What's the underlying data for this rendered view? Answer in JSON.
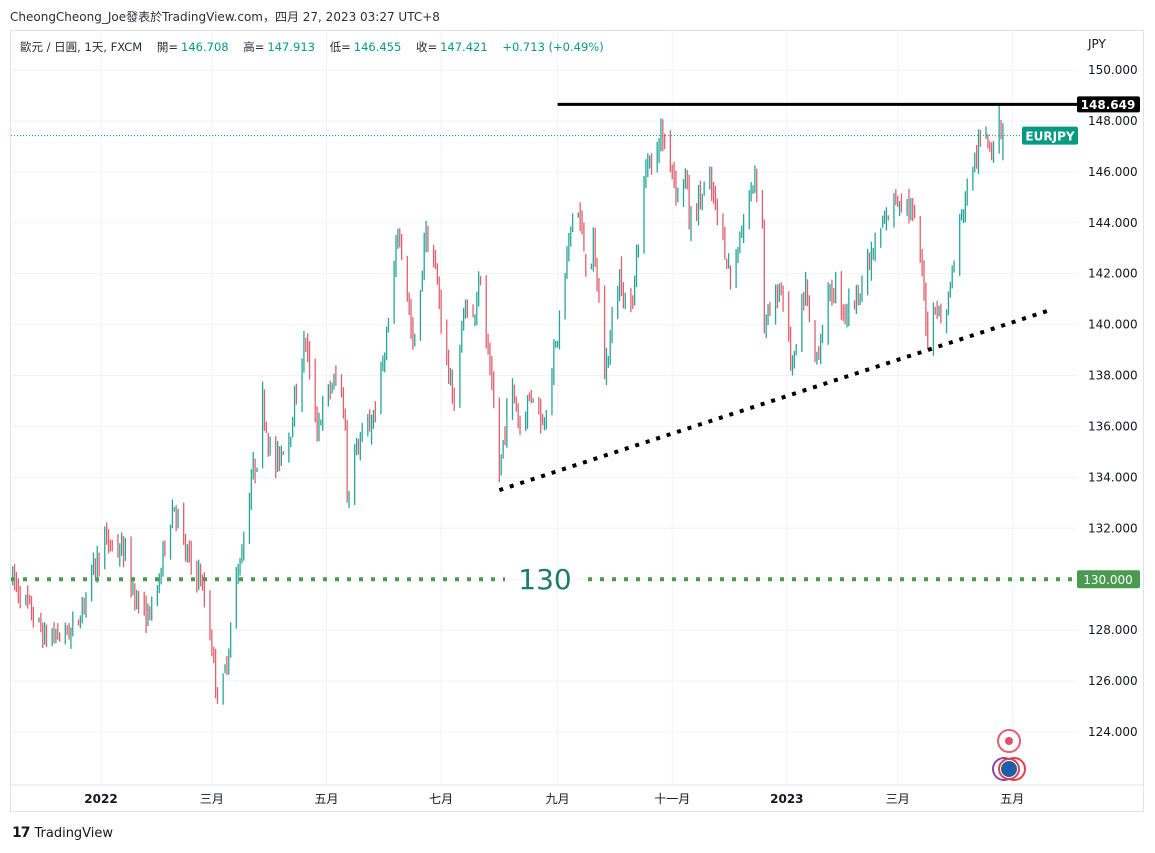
{
  "publish_line": "CheongCheong_Joe發表於TradingView.com，四月 27, 2023 03:27 UTC+8",
  "legend": {
    "symbol": "歐元 / 日圓, 1天, FXCM",
    "open_label": "開=",
    "open": "146.708",
    "high_label": "高=",
    "high": "147.913",
    "low_label": "低=",
    "low": "146.455",
    "close_label": "收=",
    "close": "147.421",
    "change": "+0.713 (+0.49%)"
  },
  "footer": {
    "logo_text": "TradingView"
  },
  "colors": {
    "up": "#26a69a",
    "down": "#e0606e",
    "accent": "#089981",
    "level130": "#4c9a52",
    "label130": "#1e7d6a"
  },
  "chart_data": {
    "type": "candlestick",
    "title": "EURJPY",
    "currency_label": "JPY",
    "ylim": [
      122.6,
      151.5
    ],
    "yticks": [
      "150.000",
      "148.000",
      "146.000",
      "144.000",
      "142.000",
      "140.000",
      "138.000",
      "136.000",
      "134.000",
      "132.000",
      "130.000",
      "128.000",
      "126.000",
      "124.000"
    ],
    "ytick_values": [
      150,
      148,
      146,
      144,
      142,
      140,
      138,
      136,
      134,
      132,
      130,
      128,
      126,
      124
    ],
    "xticks": [
      {
        "label": "2022",
        "day": 0,
        "bold": true
      },
      {
        "label": "三月",
        "day": 59
      },
      {
        "label": "五月",
        "day": 120
      },
      {
        "label": "七月",
        "day": 181
      },
      {
        "label": "九月",
        "day": 243
      },
      {
        "label": "十一月",
        "day": 304
      },
      {
        "label": "2023",
        "day": 365,
        "bold": true
      },
      {
        "label": "三月",
        "day": 424
      },
      {
        "label": "五月",
        "day": 485
      }
    ],
    "x_unit": "days since 2022-01-01",
    "close_path": [
      [
        -47,
        130
      ],
      [
        -32,
        128
      ],
      [
        -30,
        127.7
      ],
      [
        -14,
        128
      ],
      [
        -6,
        130
      ],
      [
        2,
        131.5
      ],
      [
        13,
        131
      ],
      [
        15,
        130
      ],
      [
        23,
        128.5
      ],
      [
        29,
        129
      ],
      [
        34,
        131.5
      ],
      [
        39,
        133
      ],
      [
        45,
        131
      ],
      [
        53,
        130
      ],
      [
        58,
        128
      ],
      [
        63,
        124.8
      ],
      [
        69,
        128
      ],
      [
        72,
        130
      ],
      [
        77,
        132
      ],
      [
        80,
        134
      ],
      [
        84,
        135
      ],
      [
        86,
        137
      ],
      [
        90,
        135
      ],
      [
        93,
        134.5
      ],
      [
        101,
        136
      ],
      [
        109,
        139.5
      ],
      [
        111,
        138
      ],
      [
        115,
        136
      ],
      [
        122,
        137.5
      ],
      [
        127,
        138
      ],
      [
        130,
        136
      ],
      [
        131,
        133.2
      ],
      [
        135,
        135
      ],
      [
        143,
        136
      ],
      [
        147,
        137
      ],
      [
        151,
        139
      ],
      [
        155,
        141
      ],
      [
        158,
        143.8
      ],
      [
        162,
        142
      ],
      [
        166,
        139
      ],
      [
        170,
        141
      ],
      [
        172,
        143.5
      ],
      [
        176,
        143
      ],
      [
        180,
        141
      ],
      [
        185,
        138
      ],
      [
        188,
        137
      ],
      [
        191,
        139
      ],
      [
        194,
        141
      ],
      [
        197,
        139.5
      ],
      [
        201,
        142
      ],
      [
        204,
        140
      ],
      [
        207,
        138
      ],
      [
        210,
        136
      ],
      [
        212,
        134.2
      ],
      [
        215,
        136
      ],
      [
        219,
        137.5
      ],
      [
        223,
        136
      ],
      [
        227,
        137
      ],
      [
        231,
        137.5
      ],
      [
        235,
        136
      ],
      [
        239,
        138
      ],
      [
        243,
        139.5
      ],
      [
        247,
        142
      ],
      [
        252,
        145
      ],
      [
        255,
        144
      ],
      [
        259,
        142
      ],
      [
        262,
        143
      ],
      [
        265,
        141
      ],
      [
        266,
        139
      ],
      [
        268,
        138
      ],
      [
        272,
        140
      ],
      [
        276,
        142
      ],
      [
        279,
        141
      ],
      [
        282,
        140.5
      ],
      [
        284,
        142
      ],
      [
        287,
        144
      ],
      [
        290,
        146
      ],
      [
        292,
        147
      ],
      [
        294,
        145
      ],
      [
        297,
        147.5
      ],
      [
        302,
        147
      ],
      [
        307,
        145
      ],
      [
        311,
        146
      ],
      [
        313,
        144
      ],
      [
        319,
        145
      ],
      [
        324,
        145.5
      ],
      [
        329,
        144
      ],
      [
        332,
        143
      ],
      [
        336,
        141.5
      ],
      [
        340,
        143.5
      ],
      [
        344,
        144.5
      ],
      [
        348,
        146
      ],
      [
        352,
        144
      ],
      [
        353,
        140
      ],
      [
        357,
        140.5
      ],
      [
        361,
        141.5
      ],
      [
        364,
        141
      ],
      [
        367,
        138.5
      ],
      [
        369,
        138.5
      ],
      [
        372,
        140
      ],
      [
        375,
        141.5
      ],
      [
        377,
        140
      ],
      [
        380,
        138.5
      ],
      [
        383,
        139.5
      ],
      [
        387,
        141
      ],
      [
        391,
        141.5
      ],
      [
        396,
        140.5
      ],
      [
        401,
        141
      ],
      [
        407,
        142
      ],
      [
        412,
        143
      ],
      [
        417,
        144
      ],
      [
        423,
        145
      ],
      [
        428,
        145
      ],
      [
        433,
        144
      ],
      [
        437,
        142
      ],
      [
        440,
        139.5
      ],
      [
        444,
        141
      ],
      [
        448,
        139.8
      ],
      [
        452,
        141.5
      ],
      [
        456,
        143.5
      ],
      [
        460,
        145
      ],
      [
        465,
        146.5
      ],
      [
        470,
        147.5
      ],
      [
        476,
        147
      ],
      [
        478,
        148
      ],
      [
        480,
        147.421
      ]
    ],
    "last_bar": {
      "open": 146.708,
      "high": 147.913,
      "low": 146.455,
      "close": 147.421
    },
    "annotations": {
      "resistance": {
        "price": 148.649,
        "label": "148.649",
        "start_day": 243
      },
      "trendline": {
        "from": [
          212,
          133.5
        ],
        "to": [
          505,
          140.57
        ]
      },
      "level": {
        "price": 130,
        "text": "130",
        "axis_label": "130.000"
      },
      "last_price": {
        "price": 147.421,
        "label": "EURJPY"
      }
    }
  }
}
